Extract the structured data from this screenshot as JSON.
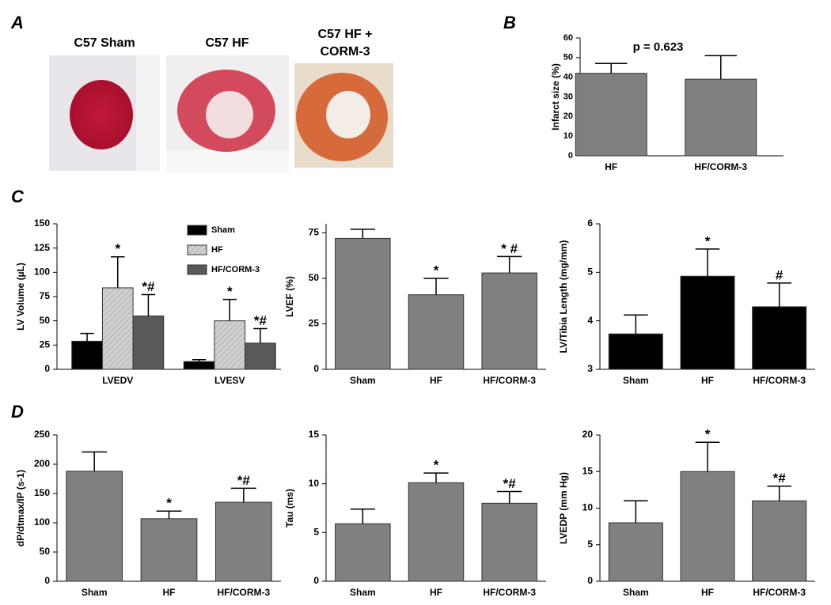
{
  "panel_labels": [
    "A",
    "B",
    "C",
    "D"
  ],
  "photos": [
    "C57 Sham",
    "C57 HF",
    "C57 HF +",
    "CORM-3"
  ],
  "chart_data": [
    {
      "type": "bar",
      "title": "p = 0.623",
      "ylabel": "Infarct size (%)",
      "categories": [
        "HF",
        "HF/CORM-3"
      ],
      "values": [
        42,
        39
      ],
      "errors": [
        5,
        12
      ],
      "color": "#808080",
      "ylim": [
        0,
        60
      ],
      "yticks": [
        0,
        10,
        20,
        30,
        40,
        50,
        60
      ]
    },
    {
      "type": "grouped-bar",
      "ylabel": "LV Volume (µL)",
      "categories": [
        "LVEDV",
        "LVESV"
      ],
      "ylim": [
        0,
        150
      ],
      "yticks": [
        0,
        25,
        50,
        75,
        100,
        125,
        150
      ],
      "legend": "top-right",
      "series": [
        {
          "name": "Sham",
          "color": "#000000",
          "values": [
            29,
            8
          ],
          "errors": [
            8,
            2
          ],
          "annotations": [
            null,
            null
          ]
        },
        {
          "name": "HF",
          "color": "#cccccc",
          "hatch": true,
          "values": [
            84,
            50
          ],
          "errors": [
            32,
            22
          ],
          "annotations": [
            "*",
            "*"
          ]
        },
        {
          "name": "HF/CORM-3",
          "color": "#595959",
          "values": [
            55,
            27
          ],
          "errors": [
            22,
            15
          ],
          "annotations": [
            "*#",
            "*#"
          ]
        }
      ]
    },
    {
      "type": "bar",
      "ylabel": "LVEF (%)",
      "categories": [
        "Sham",
        "HF",
        "HF/CORM-3"
      ],
      "values": [
        72,
        41,
        53
      ],
      "errors": [
        5,
        9,
        9
      ],
      "annotations": [
        null,
        "*",
        "* #"
      ],
      "color": "#808080",
      "ylim": [
        0,
        80
      ],
      "yticks": [
        0,
        25,
        50,
        75
      ]
    },
    {
      "type": "bar",
      "ylabel": "LV/Tibia Length (mg/mm)",
      "categories": [
        "Sham",
        "HF",
        "HF/CORM-3"
      ],
      "values": [
        3.73,
        4.92,
        4.29
      ],
      "errors": [
        0.39,
        0.56,
        0.49
      ],
      "annotations": [
        null,
        "*",
        "#"
      ],
      "color": "#000000",
      "ylim": [
        3,
        6
      ],
      "yticks": [
        3,
        4,
        5,
        6
      ]
    },
    {
      "type": "bar",
      "ylabel": "dP/dtmax/IP (s-1)",
      "categories": [
        "Sham",
        "HF",
        "HF/CORM-3"
      ],
      "values": [
        188,
        107,
        135
      ],
      "errors": [
        33,
        13,
        24
      ],
      "annotations": [
        null,
        "*",
        "*#"
      ],
      "color": "#808080",
      "ylim": [
        0,
        250
      ],
      "yticks": [
        0,
        50,
        100,
        150,
        200,
        250
      ]
    },
    {
      "type": "bar",
      "ylabel": "Tau (ms)",
      "categories": [
        "Sham",
        "HF",
        "HF/CORM-3"
      ],
      "values": [
        5.9,
        10.1,
        8.0
      ],
      "errors": [
        1.5,
        1.0,
        1.2
      ],
      "annotations": [
        null,
        "*",
        "*#"
      ],
      "color": "#808080",
      "ylim": [
        0,
        15
      ],
      "yticks": [
        0,
        5,
        10,
        15
      ]
    },
    {
      "type": "bar",
      "ylabel": "LVEDP (mm Hg)",
      "categories": [
        "Sham",
        "HF",
        "HF/CORM-3"
      ],
      "values": [
        8,
        15,
        11
      ],
      "errors": [
        3,
        4,
        2
      ],
      "annotations": [
        null,
        "*",
        "*#"
      ],
      "color": "#808080",
      "ylim": [
        0,
        20
      ],
      "yticks": [
        0,
        5,
        10,
        15,
        20
      ]
    }
  ]
}
